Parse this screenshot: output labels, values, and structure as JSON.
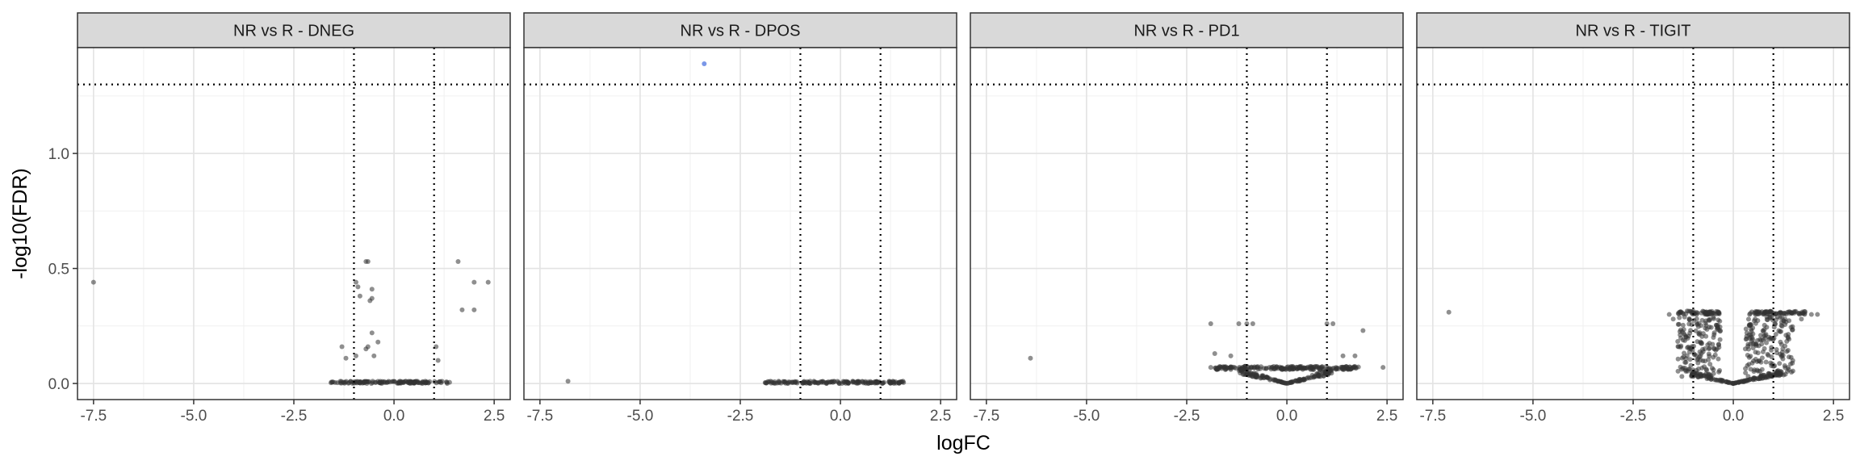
{
  "chart_data": {
    "type": "scatter",
    "xlabel": "logFC",
    "ylabel": "-log10(FDR)",
    "xlim": [
      -7.9,
      2.9
    ],
    "ylim": [
      -0.07,
      1.46
    ],
    "x_ticks": [
      -7.5,
      -5.0,
      -2.5,
      0.0,
      2.5
    ],
    "x_tick_labels": [
      "-7.5",
      "-5.0",
      "-2.5",
      "0.0",
      "2.5"
    ],
    "y_ticks": [
      0.0,
      0.5,
      1.0
    ],
    "y_tick_labels": [
      "0.0",
      "0.5",
      "1.0"
    ],
    "reference_lines": {
      "vertical": [
        -1,
        1
      ],
      "horizontal": 1.3,
      "style": "dotted"
    },
    "grid": true,
    "point_colors": {
      "default": "#333333",
      "significant": "#6b8ce6"
    },
    "panels": [
      {
        "title": "NR vs R - DNEG",
        "points": [
          {
            "x": -7.5,
            "y": 0.44
          },
          {
            "x": -0.95,
            "y": 0.44
          },
          {
            "x": -0.9,
            "y": 0.42
          },
          {
            "x": -0.85,
            "y": 0.38
          },
          {
            "x": -0.7,
            "y": 0.53
          },
          {
            "x": -0.65,
            "y": 0.53
          },
          {
            "x": -0.55,
            "y": 0.41
          },
          {
            "x": -0.55,
            "y": 0.37
          },
          {
            "x": -0.6,
            "y": 0.36
          },
          {
            "x": -0.55,
            "y": 0.22
          },
          {
            "x": -0.65,
            "y": 0.16
          },
          {
            "x": -0.7,
            "y": 0.15
          },
          {
            "x": -0.5,
            "y": 0.12
          },
          {
            "x": -0.4,
            "y": 0.18
          },
          {
            "x": -1.3,
            "y": 0.16
          },
          {
            "x": -1.2,
            "y": 0.11
          },
          {
            "x": -0.95,
            "y": 0.12
          },
          {
            "x": 1.6,
            "y": 0.53
          },
          {
            "x": 2.0,
            "y": 0.44
          },
          {
            "x": 2.35,
            "y": 0.44
          },
          {
            "x": 1.7,
            "y": 0.32
          },
          {
            "x": 2.0,
            "y": 0.32
          },
          {
            "x": 1.05,
            "y": 0.16
          },
          {
            "x": 1.1,
            "y": 0.1
          }
        ],
        "band": {
          "x_min": -1.6,
          "x_max": 1.4,
          "y_min": 0.0,
          "y_max": 0.01,
          "count": 140
        }
      },
      {
        "title": "NR vs R - DPOS",
        "points": [
          {
            "x": -3.4,
            "y": 1.39,
            "sig": true
          },
          {
            "x": -6.8,
            "y": 0.01
          }
        ],
        "band": {
          "x_min": -1.9,
          "x_max": 1.6,
          "y_min": 0.0,
          "y_max": 0.01,
          "count": 160
        }
      },
      {
        "title": "NR vs R - PD1",
        "points": [
          {
            "x": -6.4,
            "y": 0.11
          },
          {
            "x": -1.9,
            "y": 0.26
          },
          {
            "x": -1.2,
            "y": 0.26
          },
          {
            "x": -1.0,
            "y": 0.26
          },
          {
            "x": -0.85,
            "y": 0.26
          },
          {
            "x": 1.0,
            "y": 0.26
          },
          {
            "x": 1.15,
            "y": 0.26
          },
          {
            "x": 1.9,
            "y": 0.23
          },
          {
            "x": -1.8,
            "y": 0.13
          },
          {
            "x": -1.4,
            "y": 0.12
          },
          {
            "x": 1.4,
            "y": 0.12
          },
          {
            "x": 1.7,
            "y": 0.12
          },
          {
            "x": 2.4,
            "y": 0.07
          },
          {
            "x": -1.9,
            "y": 0.07
          }
        ],
        "band": {
          "x_min": -1.8,
          "x_max": 1.8,
          "y_min": 0.06,
          "y_max": 0.075,
          "count": 200
        },
        "vshape": {
          "x_min": -1.2,
          "x_max": 1.2,
          "y_top": 0.07,
          "count": 150
        }
      },
      {
        "title": "NR vs R - TIGIT",
        "points": [
          {
            "x": -7.1,
            "y": 0.31
          },
          {
            "x": 2.1,
            "y": 0.3
          },
          {
            "x": 1.95,
            "y": 0.3
          },
          {
            "x": 1.7,
            "y": 0.28
          },
          {
            "x": -1.6,
            "y": 0.3
          },
          {
            "x": -1.5,
            "y": 0.28
          },
          {
            "x": 1.2,
            "y": 0.05
          },
          {
            "x": 1.3,
            "y": 0.04
          }
        ],
        "band": {
          "x_min": -1.45,
          "x_max": -0.35,
          "y_min": 0.3,
          "y_max": 0.315,
          "count": 60
        },
        "band2": {
          "x_min": 0.4,
          "x_max": 1.8,
          "y_min": 0.3,
          "y_max": 0.315,
          "count": 70
        },
        "cloud_left": {
          "x_min": -1.4,
          "x_max": -0.3,
          "y_min": 0.03,
          "y_max": 0.29,
          "count": 170
        },
        "cloud_right": {
          "x_min": 0.3,
          "x_max": 1.5,
          "y_min": 0.03,
          "y_max": 0.29,
          "count": 170
        },
        "vshape": {
          "x_min": -1.2,
          "x_max": 1.2,
          "y_top": 0.06,
          "count": 140
        }
      }
    ]
  }
}
